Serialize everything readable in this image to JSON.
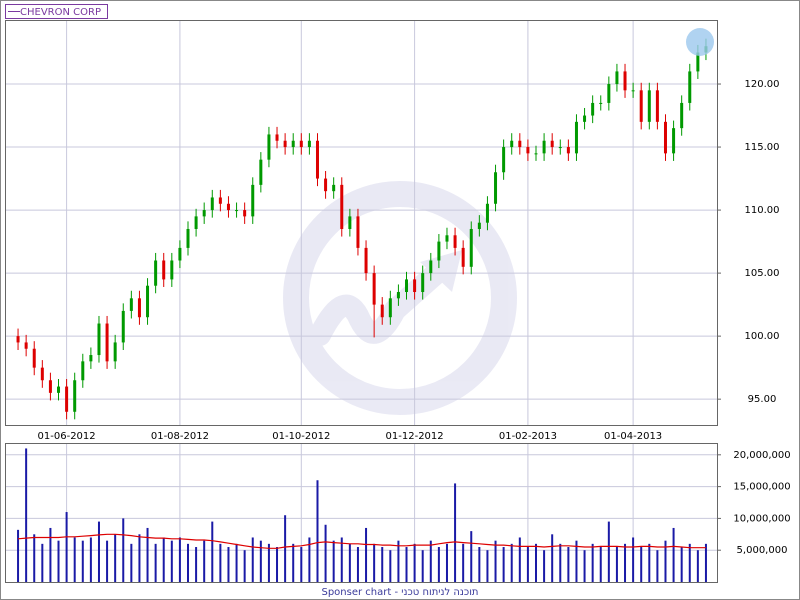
{
  "chart_data": [
    {
      "type": "candlestick",
      "title": "CHEVRON CORP",
      "up_color": "#009900",
      "down_color": "#dd0000",
      "grid": true,
      "categories": [
        null,
        null,
        null,
        null,
        null,
        null,
        "01-06-2012",
        null,
        null,
        null,
        null,
        null,
        null,
        null,
        null,
        null,
        null,
        null,
        null,
        null,
        "01-08-2012",
        null,
        null,
        null,
        null,
        null,
        null,
        null,
        null,
        null,
        null,
        null,
        null,
        null,
        null,
        "01-10-2012",
        null,
        null,
        null,
        null,
        null,
        null,
        null,
        null,
        null,
        null,
        null,
        null,
        null,
        "01-12-2012",
        null,
        null,
        null,
        null,
        null,
        null,
        null,
        null,
        null,
        null,
        null,
        null,
        null,
        "01-02-2013",
        null,
        null,
        null,
        null,
        null,
        null,
        null,
        null,
        null,
        null,
        null,
        null,
        "01-04-2013",
        null,
        null,
        null,
        null,
        null,
        null,
        null,
        null,
        null
      ],
      "open": [
        100,
        99.5,
        99,
        97.5,
        96.5,
        95.5,
        96,
        94,
        96.5,
        98,
        98.5,
        101,
        98,
        99.5,
        102,
        103,
        101.5,
        104,
        106,
        104.5,
        106,
        107,
        108.5,
        109.5,
        110,
        111,
        110.5,
        110,
        110,
        109.5,
        112,
        114,
        116,
        115.5,
        115,
        115.5,
        115,
        115.5,
        112.5,
        111.5,
        112,
        108.5,
        109.5,
        107,
        105,
        102.5,
        101.5,
        103,
        103.5,
        104.5,
        103.5,
        105,
        106,
        107.5,
        108,
        107,
        105.5,
        108.5,
        109,
        110.5,
        113,
        115,
        115.5,
        115,
        114.5,
        114.5,
        115.5,
        115,
        115,
        114.5,
        117,
        117.5,
        118.5,
        118.5,
        120,
        121,
        119.5,
        119.5,
        117,
        119.5,
        117,
        114.5,
        116.5,
        118.5,
        121,
        122.5
      ],
      "high": [
        100.6,
        100.1,
        99.6,
        98.1,
        97.1,
        96.6,
        96.6,
        97.1,
        98.6,
        99.1,
        101.6,
        101.6,
        100.1,
        102.6,
        103.6,
        103.6,
        104.6,
        106.6,
        106.6,
        106.6,
        107.6,
        109.1,
        110.1,
        110.6,
        111.6,
        111.6,
        111.1,
        110.6,
        110.6,
        112.6,
        114.6,
        116.6,
        116.6,
        116.1,
        116.1,
        116.1,
        116.1,
        116.1,
        113.1,
        112.6,
        112.6,
        110.1,
        110.1,
        107.6,
        105.6,
        103.1,
        103.6,
        104.1,
        105.1,
        105.1,
        105.6,
        106.6,
        108.1,
        108.6,
        108.6,
        107.6,
        109.1,
        109.6,
        111.1,
        113.6,
        115.6,
        116.1,
        116.1,
        115.6,
        115.1,
        116.1,
        116.1,
        115.6,
        115.6,
        117.6,
        118.1,
        119.1,
        119.1,
        120.6,
        121.6,
        121.6,
        120.1,
        120.1,
        120.1,
        120.1,
        117.6,
        117.1,
        119.1,
        121.6,
        123.1,
        123.6
      ],
      "low": [
        98.9,
        98.4,
        96.9,
        95.9,
        94.9,
        94.9,
        93.4,
        93.4,
        95.9,
        97.4,
        97.9,
        97.4,
        97.4,
        98.9,
        101.4,
        100.9,
        100.9,
        103.4,
        103.9,
        103.9,
        105.4,
        106.4,
        107.9,
        108.9,
        109.4,
        109.9,
        109.4,
        109.4,
        108.9,
        108.9,
        111.4,
        113.4,
        114.9,
        114.4,
        114.4,
        114.4,
        114.4,
        111.9,
        110.9,
        110.9,
        107.9,
        107.9,
        106.4,
        104.4,
        99.9,
        100.9,
        100.9,
        102.4,
        102.9,
        102.9,
        102.9,
        104.4,
        105.4,
        106.9,
        106.4,
        104.9,
        104.9,
        107.9,
        108.4,
        109.9,
        112.4,
        114.4,
        114.4,
        113.9,
        113.9,
        113.9,
        114.4,
        114.4,
        113.9,
        113.9,
        116.4,
        116.9,
        117.9,
        117.9,
        119.4,
        118.9,
        118.9,
        116.4,
        116.4,
        116.4,
        113.9,
        113.9,
        115.9,
        117.9,
        120.4,
        121.9
      ],
      "close": [
        99.5,
        99,
        97.5,
        96.5,
        95.5,
        96,
        94,
        96.5,
        98,
        98.5,
        101,
        98,
        99.5,
        102,
        103,
        101.5,
        104,
        106,
        104.5,
        106,
        107,
        108.5,
        109.5,
        110,
        111,
        110.5,
        110,
        110,
        109.5,
        112,
        114,
        116,
        115.5,
        115,
        115.5,
        115,
        115.5,
        112.5,
        111.5,
        112,
        108.5,
        109.5,
        107,
        105,
        102.5,
        101.5,
        103,
        103.5,
        104.5,
        103.5,
        105,
        106,
        107.5,
        108,
        107,
        105.5,
        108.5,
        109,
        110.5,
        113,
        115,
        115.5,
        115,
        114.5,
        114.5,
        115.5,
        115,
        115,
        114.5,
        117,
        117.5,
        118.5,
        118.5,
        120,
        121,
        119.5,
        119.5,
        117,
        119.5,
        117,
        114.5,
        116.5,
        118.5,
        121,
        122.5,
        123
      ],
      "ylim": [
        92.95,
        125
      ],
      "yticks": [
        {
          "value": 95,
          "label": "95.00"
        },
        {
          "value": 100,
          "label": "100.00"
        },
        {
          "value": 105,
          "label": "105.00"
        },
        {
          "value": 110,
          "label": "110.00"
        },
        {
          "value": 115,
          "label": "115.00"
        },
        {
          "value": 120,
          "label": "120.00"
        }
      ]
    },
    {
      "type": "volume",
      "grid": true,
      "series": [
        {
          "type": "bar",
          "color": "#1a1aa6",
          "values": [
            8200000,
            21000000,
            7500000,
            6000000,
            8500000,
            6500000,
            11000000,
            7000000,
            6500000,
            7000000,
            9500000,
            6500000,
            7500000,
            10000000,
            6000000,
            7500000,
            8500000,
            6000000,
            7000000,
            6500000,
            7000000,
            6000000,
            5500000,
            6500000,
            9500000,
            6000000,
            5500000,
            6000000,
            5000000,
            7000000,
            6500000,
            6000000,
            5500000,
            10500000,
            6000000,
            5500000,
            7000000,
            16000000,
            9000000,
            6500000,
            7000000,
            6000000,
            5500000,
            8500000,
            6000000,
            5500000,
            5000000,
            6500000,
            5500000,
            6000000,
            5000000,
            6500000,
            5500000,
            6000000,
            15500000,
            6000000,
            8000000,
            5500000,
            5000000,
            6500000,
            5500000,
            6000000,
            7000000,
            5500000,
            6000000,
            5000000,
            7500000,
            6000000,
            5500000,
            6500000,
            5000000,
            6000000,
            5500000,
            9500000,
            5500000,
            6000000,
            7000000,
            5500000,
            6000000,
            5000000,
            6500000,
            8500000,
            5500000,
            6000000,
            5000000,
            6000000
          ]
        },
        {
          "type": "line",
          "color": "#dd0000",
          "values": [
            6800000,
            6900000,
            7000000,
            7000000,
            7000000,
            7000000,
            7100000,
            7100000,
            7200000,
            7300000,
            7400000,
            7500000,
            7500000,
            7400000,
            7300000,
            7100000,
            7000000,
            6900000,
            6900000,
            6800000,
            6800000,
            6700000,
            6600000,
            6600000,
            6500000,
            6300000,
            6100000,
            5900000,
            5700000,
            5500000,
            5400000,
            5300000,
            5300000,
            5500000,
            5600000,
            5700000,
            5900000,
            6200000,
            6300000,
            6200000,
            6100000,
            6000000,
            6000000,
            5900000,
            5900000,
            5800000,
            5800000,
            5700000,
            5700000,
            5800000,
            5800000,
            5800000,
            6000000,
            6200000,
            6300000,
            6200000,
            6100000,
            6000000,
            5900000,
            5800000,
            5800000,
            5700000,
            5600000,
            5600000,
            5600000,
            5500000,
            5600000,
            5700000,
            5700000,
            5600000,
            5500000,
            5500000,
            5600000,
            5600000,
            5600000,
            5500000,
            5500000,
            5600000,
            5600000,
            5500000,
            5500000,
            5600000,
            5500000,
            5400000,
            5400000,
            5400000
          ]
        }
      ],
      "ylim": [
        0,
        21700000
      ],
      "yticks": [
        {
          "value": 5000000,
          "label": "5,000,000"
        },
        {
          "value": 10000000,
          "label": "10,000,000"
        },
        {
          "value": 15000000,
          "label": "15,000,000"
        },
        {
          "value": 20000000,
          "label": "20,000,000"
        }
      ]
    }
  ],
  "footer": "Sponser chart - תוכנה לניתוח טכני"
}
